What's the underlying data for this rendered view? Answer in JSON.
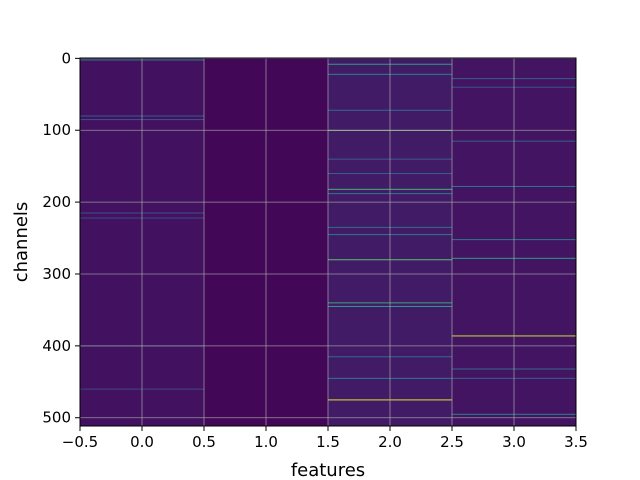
{
  "chart_data": {
    "type": "heatmap",
    "title": "",
    "xlabel": "features",
    "ylabel": "channels",
    "xlim": [
      -0.5,
      3.5
    ],
    "ylim": [
      511.5,
      -0.5
    ],
    "y_inverted": true,
    "grid": true,
    "colormap": "viridis",
    "n_columns": 4,
    "n_rows": 512,
    "x_ticks": [
      -0.5,
      0.0,
      0.5,
      1.0,
      1.5,
      2.0,
      2.5,
      3.0,
      3.5
    ],
    "x_tick_labels": [
      "−0.5",
      "0.0",
      "0.5",
      "1.0",
      "1.5",
      "2.0",
      "2.5",
      "3.0",
      "3.5"
    ],
    "y_ticks": [
      0,
      100,
      200,
      300,
      400,
      500
    ],
    "y_tick_labels": [
      "0",
      "100",
      "200",
      "300",
      "400",
      "500"
    ],
    "column_background_values": [
      0.05,
      0.02,
      0.08,
      0.06
    ],
    "highlight_rows": [
      {
        "column": 0,
        "row": 2,
        "value": 0.45
      },
      {
        "column": 0,
        "row": 80,
        "value": 0.3
      },
      {
        "column": 0,
        "row": 85,
        "value": 0.25
      },
      {
        "column": 0,
        "row": 215,
        "value": 0.25
      },
      {
        "column": 0,
        "row": 222,
        "value": 0.22
      },
      {
        "column": 0,
        "row": 400,
        "value": 0.28
      },
      {
        "column": 0,
        "row": 460,
        "value": 0.22
      },
      {
        "column": 2,
        "row": 8,
        "value": 0.55
      },
      {
        "column": 2,
        "row": 22,
        "value": 0.45
      },
      {
        "column": 2,
        "row": 72,
        "value": 0.35
      },
      {
        "column": 2,
        "row": 100,
        "value": 0.78
      },
      {
        "column": 2,
        "row": 140,
        "value": 0.3
      },
      {
        "column": 2,
        "row": 160,
        "value": 0.3
      },
      {
        "column": 2,
        "row": 182,
        "value": 0.65
      },
      {
        "column": 2,
        "row": 188,
        "value": 0.4
      },
      {
        "column": 2,
        "row": 235,
        "value": 0.35
      },
      {
        "column": 2,
        "row": 245,
        "value": 0.4
      },
      {
        "column": 2,
        "row": 280,
        "value": 0.72
      },
      {
        "column": 2,
        "row": 340,
        "value": 0.6
      },
      {
        "column": 2,
        "row": 345,
        "value": 0.55
      },
      {
        "column": 2,
        "row": 415,
        "value": 0.35
      },
      {
        "column": 2,
        "row": 445,
        "value": 0.4
      },
      {
        "column": 2,
        "row": 475,
        "value": 0.95
      },
      {
        "column": 3,
        "row": 28,
        "value": 0.3
      },
      {
        "column": 3,
        "row": 40,
        "value": 0.25
      },
      {
        "column": 3,
        "row": 115,
        "value": 0.3
      },
      {
        "column": 3,
        "row": 178,
        "value": 0.4
      },
      {
        "column": 3,
        "row": 252,
        "value": 0.4
      },
      {
        "column": 3,
        "row": 278,
        "value": 0.55
      },
      {
        "column": 3,
        "row": 386,
        "value": 0.92
      },
      {
        "column": 3,
        "row": 432,
        "value": 0.35
      },
      {
        "column": 3,
        "row": 445,
        "value": 0.3
      },
      {
        "column": 3,
        "row": 495,
        "value": 0.45
      }
    ]
  }
}
